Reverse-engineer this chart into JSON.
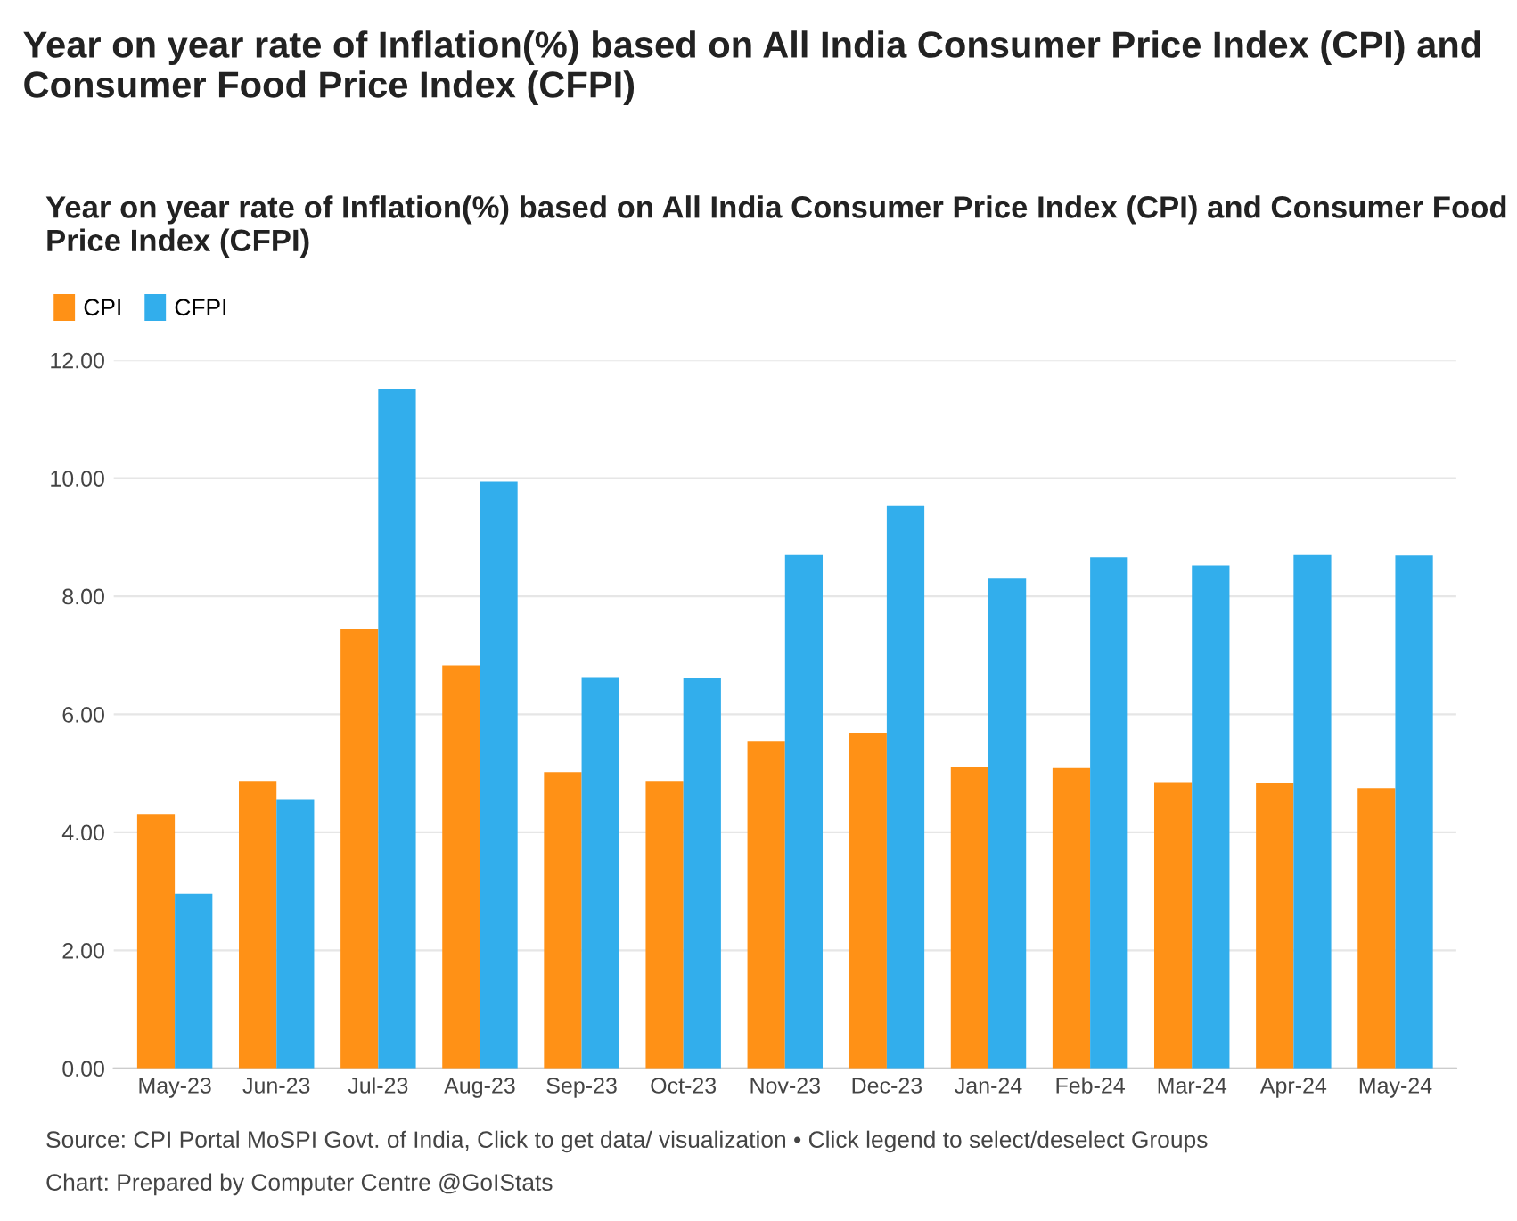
{
  "chart_data": {
    "type": "bar",
    "title": "Year on year rate of Inflation(%) based on All India Consumer Price Index (CPI) and Consumer Food Price Index (CFPI)",
    "subtitle": "Year on year rate of Inflation(%) based on All India Consumer Price Index (CPI) and Consumer Food Price Index (CFPI)",
    "categories": [
      "May-23",
      "Jun-23",
      "Jul-23",
      "Aug-23",
      "Sep-23",
      "Oct-23",
      "Nov-23",
      "Dec-23",
      "Jan-24",
      "Feb-24",
      "Mar-24",
      "Apr-24",
      "May-24"
    ],
    "series": [
      {
        "name": "CPI",
        "color": "#ff9116",
        "values": [
          4.31,
          4.87,
          7.44,
          6.83,
          5.02,
          4.87,
          5.55,
          5.69,
          5.1,
          5.09,
          4.85,
          4.83,
          4.75
        ]
      },
      {
        "name": "CFPI",
        "color": "#32aeec",
        "values": [
          2.96,
          4.55,
          11.51,
          9.94,
          6.62,
          6.61,
          8.7,
          9.53,
          8.3,
          8.66,
          8.52,
          8.7,
          8.69
        ]
      }
    ],
    "ylim": [
      0,
      12
    ],
    "yticks": [
      {
        "value": 0,
        "label": "0.00"
      },
      {
        "value": 2,
        "label": "2.00"
      },
      {
        "value": 4,
        "label": "4.00"
      },
      {
        "value": 6,
        "label": "6.00"
      },
      {
        "value": 8,
        "label": "8.00"
      },
      {
        "value": 10,
        "label": "10.00"
      },
      {
        "value": 12,
        "label": "12.00"
      }
    ],
    "grid": "y",
    "legend": "top left",
    "annotations": [
      "Source: CPI Portal MoSPI Govt. of India, Click to get data/ visualization • Click legend to select/deselect Groups",
      "Chart: Prepared by Computer Centre @GoIStats"
    ]
  }
}
